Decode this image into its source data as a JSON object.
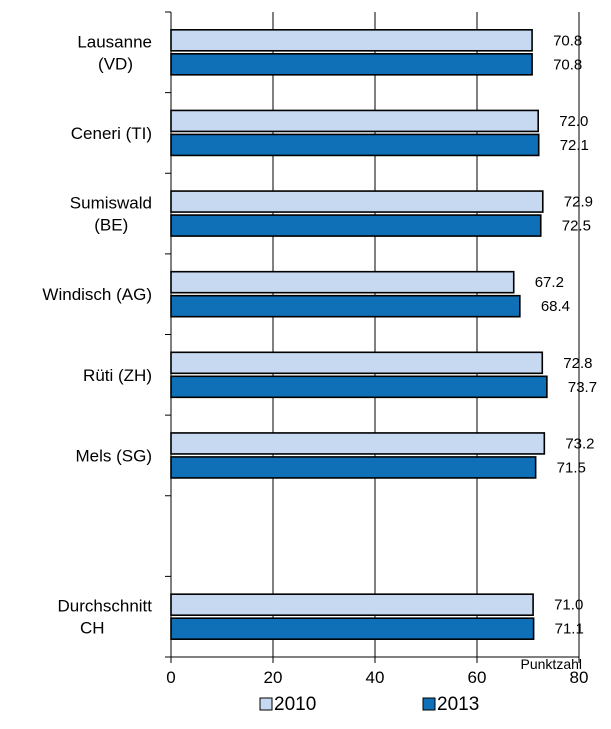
{
  "chart_data": {
    "type": "bar",
    "orientation": "horizontal",
    "categories": [
      [
        "Lausanne",
        "(VD)"
      ],
      [
        "Ceneri (TI)"
      ],
      [
        "Sumiswald",
        "(BE)"
      ],
      [
        "Windisch (AG)"
      ],
      [
        "Rüti (ZH)"
      ],
      [
        "Mels (SG)"
      ],
      [],
      [
        "Durchschnitt",
        "CH"
      ]
    ],
    "series": [
      {
        "name": "2010",
        "color": "#c6d9f1",
        "values": [
          70.8,
          72.0,
          72.9,
          67.2,
          72.8,
          73.2,
          null,
          71.0
        ],
        "labels": [
          "70.8",
          "72.0",
          "72.9",
          "67.2",
          "72.8",
          "73.2",
          null,
          "71.0"
        ]
      },
      {
        "name": "2013",
        "color": "#0f6fb7",
        "values": [
          70.8,
          72.1,
          72.5,
          68.4,
          73.7,
          71.5,
          null,
          71.1
        ],
        "labels": [
          "70.8",
          "72.1",
          "72.5",
          "68.4",
          "73.7",
          "71.5",
          null,
          "71.1"
        ]
      }
    ],
    "xlim": [
      0,
      80
    ],
    "xticks": [
      0,
      20,
      40,
      60,
      80
    ],
    "xlabel": "Punktzahl",
    "grid": "vertical",
    "legend": "bottom"
  }
}
